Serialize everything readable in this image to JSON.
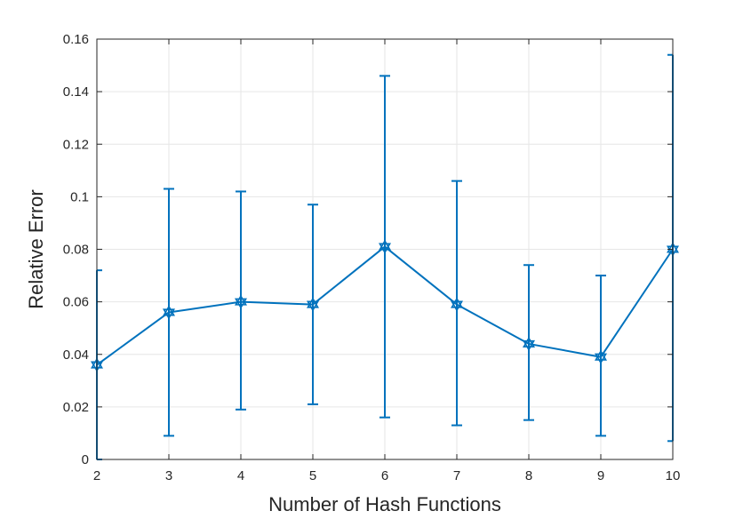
{
  "chart_data": {
    "type": "line",
    "title": "",
    "xlabel": "Number of Hash Functions",
    "ylabel": "Relative Error",
    "xlim": [
      2,
      10
    ],
    "ylim": [
      0,
      0.16
    ],
    "x_ticks": [
      2,
      3,
      4,
      5,
      6,
      7,
      8,
      9,
      10
    ],
    "y_ticks": [
      0,
      0.02,
      0.04,
      0.06,
      0.08,
      0.1,
      0.12,
      0.14,
      0.16
    ],
    "y_tick_labels": [
      "0",
      "0.02",
      "0.04",
      "0.06",
      "0.08",
      "0.1",
      "0.12",
      "0.14",
      "0.16"
    ],
    "grid": true,
    "series": [
      {
        "marker": "hexagram",
        "color": "#0072BD",
        "x": [
          2,
          3,
          4,
          5,
          6,
          7,
          8,
          9,
          10
        ],
        "y": [
          0.036,
          0.056,
          0.06,
          0.059,
          0.081,
          0.059,
          0.044,
          0.039,
          0.08
        ],
        "y_lower": [
          0.0,
          0.009,
          0.019,
          0.021,
          0.016,
          0.013,
          0.015,
          0.009,
          0.007
        ],
        "y_upper": [
          0.072,
          0.103,
          0.102,
          0.097,
          0.146,
          0.106,
          0.074,
          0.07,
          0.154
        ]
      }
    ]
  },
  "colors": {
    "series": "#0072BD",
    "axis": "#262626",
    "grid": "#e6e6e6"
  }
}
